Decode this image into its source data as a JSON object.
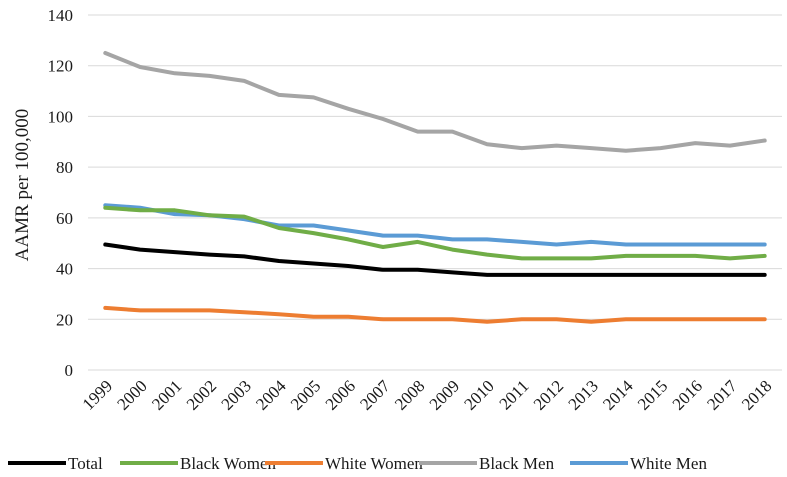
{
  "chart_data": {
    "type": "line",
    "title": "",
    "xlabel": "",
    "ylabel": "AAMR per 100,000",
    "ylim": [
      0,
      140
    ],
    "yticks": [
      0,
      20,
      40,
      60,
      80,
      100,
      120,
      140
    ],
    "grid": true,
    "legend_position": "bottom",
    "categories": [
      "1999",
      "2000",
      "2001",
      "2002",
      "2003",
      "2004",
      "2005",
      "2006",
      "2007",
      "2008",
      "2009",
      "2010",
      "2011",
      "2012",
      "2013",
      "2014",
      "2015",
      "2016",
      "2017",
      "2018"
    ],
    "series": [
      {
        "name": "Total",
        "color": "#000000",
        "values": [
          49.5,
          47.5,
          46.5,
          45.5,
          44.8,
          43,
          42,
          41,
          39.5,
          39.5,
          38.5,
          37.5,
          37.5,
          37.5,
          37.5,
          37.5,
          37.5,
          37.5,
          37.5,
          37.5
        ]
      },
      {
        "name": "Black Women",
        "color": "#70ad47",
        "values": [
          64,
          63,
          63,
          61,
          60.5,
          56,
          54,
          51.5,
          48.5,
          50.5,
          47.5,
          45.5,
          44,
          44,
          44,
          45,
          45,
          45,
          44,
          45
        ]
      },
      {
        "name": "White Women",
        "color": "#ed7d31",
        "values": [
          24.5,
          23.5,
          23.5,
          23.5,
          22.8,
          22,
          21,
          21,
          20,
          20,
          20,
          19,
          20,
          20,
          19,
          20,
          20,
          20,
          20,
          20
        ]
      },
      {
        "name": "Black Men",
        "color": "#a5a5a5",
        "values": [
          125,
          119.5,
          117,
          116,
          114,
          108.5,
          107.5,
          103,
          99,
          94,
          94,
          89,
          87.5,
          88.5,
          87.5,
          86.5,
          87.5,
          89.5,
          88.5,
          90.5
        ]
      },
      {
        "name": "White Men",
        "color": "#5b9bd5",
        "values": [
          65,
          64,
          61.5,
          61,
          59.5,
          57,
          57,
          55,
          53,
          53,
          51.5,
          51.5,
          50.5,
          49.5,
          50.5,
          49.5,
          49.5,
          49.5,
          49.5,
          49.5
        ]
      }
    ]
  }
}
